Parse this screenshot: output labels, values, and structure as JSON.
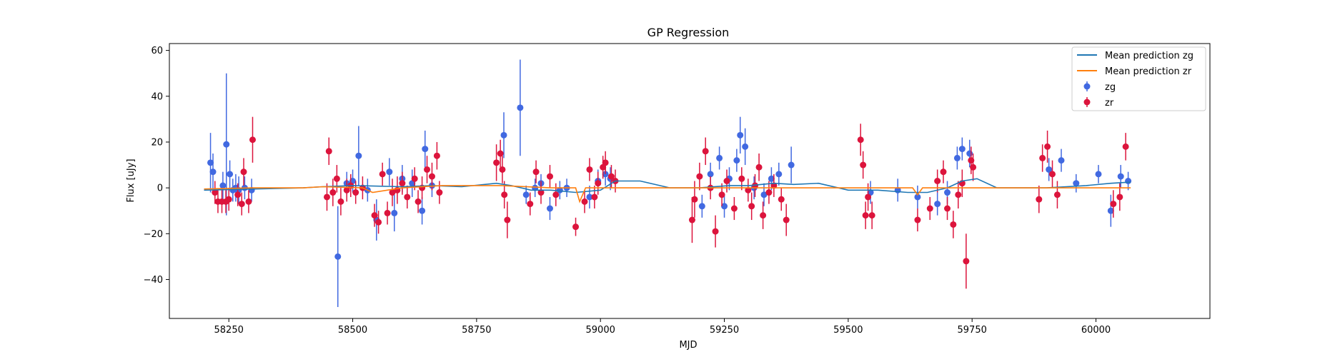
{
  "chart_data": {
    "type": "scatter",
    "title": "GP Regression",
    "xlabel": "MJD",
    "ylabel": "Flux [uJy]",
    "xlim": [
      58130,
      60230
    ],
    "ylim": [
      -57,
      63
    ],
    "xticks": [
      58250,
      58500,
      58750,
      59000,
      59250,
      59500,
      59750,
      60000
    ],
    "yticks": [
      -40,
      -20,
      0,
      20,
      40,
      60
    ],
    "grid": false,
    "legend": "top-right",
    "legend_entries": [
      "Mean prediction zg",
      "Mean prediction zr",
      "zg",
      "zr"
    ],
    "colors": {
      "zg_points": "#4169e1",
      "zr_points": "#dc143c",
      "zg_mean": "#1f77b4",
      "zr_mean": "#ff7f0e"
    },
    "series": [
      {
        "name": "zg",
        "kind": "errorbar",
        "points": [
          [
            58213,
            11,
            13
          ],
          [
            58218,
            7,
            8
          ],
          [
            58238,
            1,
            6
          ],
          [
            58245,
            19,
            31
          ],
          [
            58252,
            6,
            6
          ],
          [
            58258,
            -1,
            5
          ],
          [
            58264,
            0,
            6
          ],
          [
            58270,
            -1,
            6
          ],
          [
            58282,
            0,
            5
          ],
          [
            58296,
            -1,
            5
          ],
          [
            58470,
            -30,
            22
          ],
          [
            58488,
            2,
            5
          ],
          [
            58500,
            3,
            5
          ],
          [
            58512,
            14,
            13
          ],
          [
            58530,
            -1,
            5
          ],
          [
            58548,
            -14,
            9
          ],
          [
            58574,
            7,
            6
          ],
          [
            58584,
            -11,
            8
          ],
          [
            58600,
            4,
            6
          ],
          [
            58620,
            2,
            6
          ],
          [
            58640,
            -10,
            6
          ],
          [
            58646,
            17,
            8
          ],
          [
            58660,
            1,
            5
          ],
          [
            58805,
            23,
            10
          ],
          [
            58838,
            35,
            21
          ],
          [
            58850,
            -3,
            4
          ],
          [
            58868,
            0,
            4
          ],
          [
            58880,
            2,
            4
          ],
          [
            58898,
            -9,
            5
          ],
          [
            58918,
            -1,
            4
          ],
          [
            58932,
            0,
            4
          ],
          [
            58978,
            -4,
            5
          ],
          [
            58995,
            3,
            5
          ],
          [
            59010,
            6,
            5
          ],
          [
            59020,
            4,
            5
          ],
          [
            59205,
            -8,
            5
          ],
          [
            59222,
            6,
            5
          ],
          [
            59240,
            13,
            5
          ],
          [
            59250,
            -8,
            5
          ],
          [
            59260,
            4,
            5
          ],
          [
            59275,
            12,
            5
          ],
          [
            59282,
            23,
            8
          ],
          [
            59292,
            18,
            8
          ],
          [
            59310,
            0,
            5
          ],
          [
            59330,
            -3,
            5
          ],
          [
            59345,
            4,
            5
          ],
          [
            59360,
            6,
            5
          ],
          [
            59385,
            10,
            8
          ],
          [
            59545,
            -2,
            5
          ],
          [
            59600,
            -1,
            5
          ],
          [
            59640,
            -4,
            5
          ],
          [
            59680,
            -7,
            5
          ],
          [
            59700,
            -2,
            5
          ],
          [
            59720,
            13,
            5
          ],
          [
            59730,
            17,
            5
          ],
          [
            59745,
            15,
            6
          ],
          [
            59905,
            8,
            5
          ],
          [
            59930,
            12,
            5
          ],
          [
            59960,
            2,
            4
          ],
          [
            60005,
            6,
            4
          ],
          [
            60030,
            -10,
            7
          ],
          [
            60050,
            5,
            5
          ],
          [
            60065,
            3,
            4
          ]
        ]
      },
      {
        "name": "zr",
        "kind": "errorbar",
        "points": [
          [
            58222,
            -2,
            5
          ],
          [
            58228,
            -6,
            5
          ],
          [
            58236,
            -6,
            5
          ],
          [
            58244,
            -6,
            5
          ],
          [
            58250,
            -5,
            5
          ],
          [
            58268,
            -3,
            5
          ],
          [
            58276,
            -7,
            5
          ],
          [
            58280,
            7,
            6
          ],
          [
            58290,
            -6,
            5
          ],
          [
            58298,
            21,
            10
          ],
          [
            58448,
            -4,
            6
          ],
          [
            58452,
            16,
            6
          ],
          [
            58460,
            -2,
            6
          ],
          [
            58468,
            4,
            6
          ],
          [
            58476,
            -6,
            6
          ],
          [
            58488,
            -1,
            5
          ],
          [
            58496,
            1,
            5
          ],
          [
            58506,
            -2,
            5
          ],
          [
            58520,
            0,
            5
          ],
          [
            58544,
            -12,
            5
          ],
          [
            58552,
            -15,
            5
          ],
          [
            58560,
            6,
            5
          ],
          [
            58570,
            -11,
            5
          ],
          [
            58580,
            -2,
            6
          ],
          [
            58590,
            -1,
            6
          ],
          [
            58600,
            2,
            5
          ],
          [
            58610,
            -4,
            5
          ],
          [
            58625,
            4,
            5
          ],
          [
            58632,
            -6,
            5
          ],
          [
            58640,
            0,
            5
          ],
          [
            58650,
            8,
            6
          ],
          [
            58660,
            5,
            6
          ],
          [
            58670,
            14,
            6
          ],
          [
            58675,
            -2,
            5
          ],
          [
            58790,
            11,
            8
          ],
          [
            58798,
            15,
            6
          ],
          [
            58802,
            8,
            6
          ],
          [
            58806,
            -3,
            6
          ],
          [
            58812,
            -14,
            8
          ],
          [
            58858,
            -7,
            5
          ],
          [
            58870,
            7,
            5
          ],
          [
            58880,
            -2,
            5
          ],
          [
            58898,
            5,
            5
          ],
          [
            58910,
            -3,
            5
          ],
          [
            58950,
            -17,
            4
          ],
          [
            58968,
            -6,
            5
          ],
          [
            58978,
            8,
            5
          ],
          [
            58988,
            -4,
            5
          ],
          [
            58995,
            2,
            5
          ],
          [
            59005,
            9,
            5
          ],
          [
            59010,
            11,
            5
          ],
          [
            59022,
            5,
            5
          ],
          [
            59030,
            3,
            5
          ],
          [
            59185,
            -14,
            10
          ],
          [
            59190,
            -5,
            8
          ],
          [
            59200,
            5,
            6
          ],
          [
            59212,
            16,
            6
          ],
          [
            59222,
            0,
            5
          ],
          [
            59232,
            -19,
            7
          ],
          [
            59245,
            -3,
            5
          ],
          [
            59255,
            3,
            5
          ],
          [
            59270,
            -9,
            5
          ],
          [
            59285,
            4,
            5
          ],
          [
            59298,
            -1,
            5
          ],
          [
            59305,
            -8,
            6
          ],
          [
            59312,
            1,
            5
          ],
          [
            59320,
            9,
            6
          ],
          [
            59328,
            -12,
            6
          ],
          [
            59340,
            -2,
            5
          ],
          [
            59350,
            1,
            5
          ],
          [
            59365,
            -5,
            5
          ],
          [
            59375,
            -14,
            7
          ],
          [
            59525,
            21,
            7
          ],
          [
            59530,
            10,
            6
          ],
          [
            59535,
            -12,
            6
          ],
          [
            59540,
            -4,
            6
          ],
          [
            59548,
            -12,
            6
          ],
          [
            59640,
            -14,
            5
          ],
          [
            59665,
            -9,
            5
          ],
          [
            59680,
            3,
            5
          ],
          [
            59692,
            7,
            5
          ],
          [
            59700,
            -9,
            5
          ],
          [
            59712,
            -16,
            6
          ],
          [
            59722,
            -3,
            6
          ],
          [
            59730,
            2,
            6
          ],
          [
            59738,
            -32,
            12
          ],
          [
            59748,
            12,
            6
          ],
          [
            59752,
            9,
            6
          ],
          [
            59885,
            -5,
            6
          ],
          [
            59892,
            13,
            6
          ],
          [
            59902,
            18,
            7
          ],
          [
            59912,
            6,
            6
          ],
          [
            59922,
            -3,
            6
          ],
          [
            60035,
            -7,
            6
          ],
          [
            60048,
            -4,
            6
          ],
          [
            60060,
            18,
            6
          ]
        ]
      },
      {
        "name": "Mean prediction zg",
        "kind": "line",
        "x": [
          58200,
          58300,
          58400,
          58440,
          58500,
          58600,
          58660,
          58720,
          58790,
          58820,
          58860,
          58900,
          58950,
          59000,
          59030,
          59080,
          59140,
          59200,
          59260,
          59300,
          59350,
          59390,
          59440,
          59500,
          59560,
          59620,
          59660,
          59700,
          59730,
          59760,
          59800,
          59860,
          59900,
          59940,
          59980,
          60030,
          60070
        ],
        "y": [
          -1,
          -0.5,
          0,
          0.5,
          1,
          0.5,
          1,
          0.5,
          2,
          1,
          -1,
          -1,
          -2,
          -1,
          3,
          3,
          0,
          0,
          1,
          1,
          2,
          1.5,
          2,
          -1,
          -1,
          -2,
          -2,
          0,
          3,
          4,
          0,
          0,
          0,
          0.5,
          1,
          2,
          2.5
        ]
      },
      {
        "name": "Mean prediction zr",
        "kind": "line",
        "x": [
          58200,
          58300,
          58400,
          58440,
          58520,
          58540,
          58600,
          58680,
          58800,
          58900,
          58950,
          58958,
          58970,
          59050,
          59200,
          59300,
          59400,
          59500,
          59600,
          59630,
          59640,
          59650,
          59700,
          59760,
          59880,
          60000,
          60070
        ],
        "y": [
          -0.5,
          0,
          0,
          0.5,
          0,
          -2,
          0,
          1,
          1,
          0,
          0,
          -6,
          0,
          0,
          0,
          0,
          0,
          0,
          0,
          0,
          -3,
          0,
          0,
          0,
          0,
          0,
          0
        ]
      }
    ]
  }
}
